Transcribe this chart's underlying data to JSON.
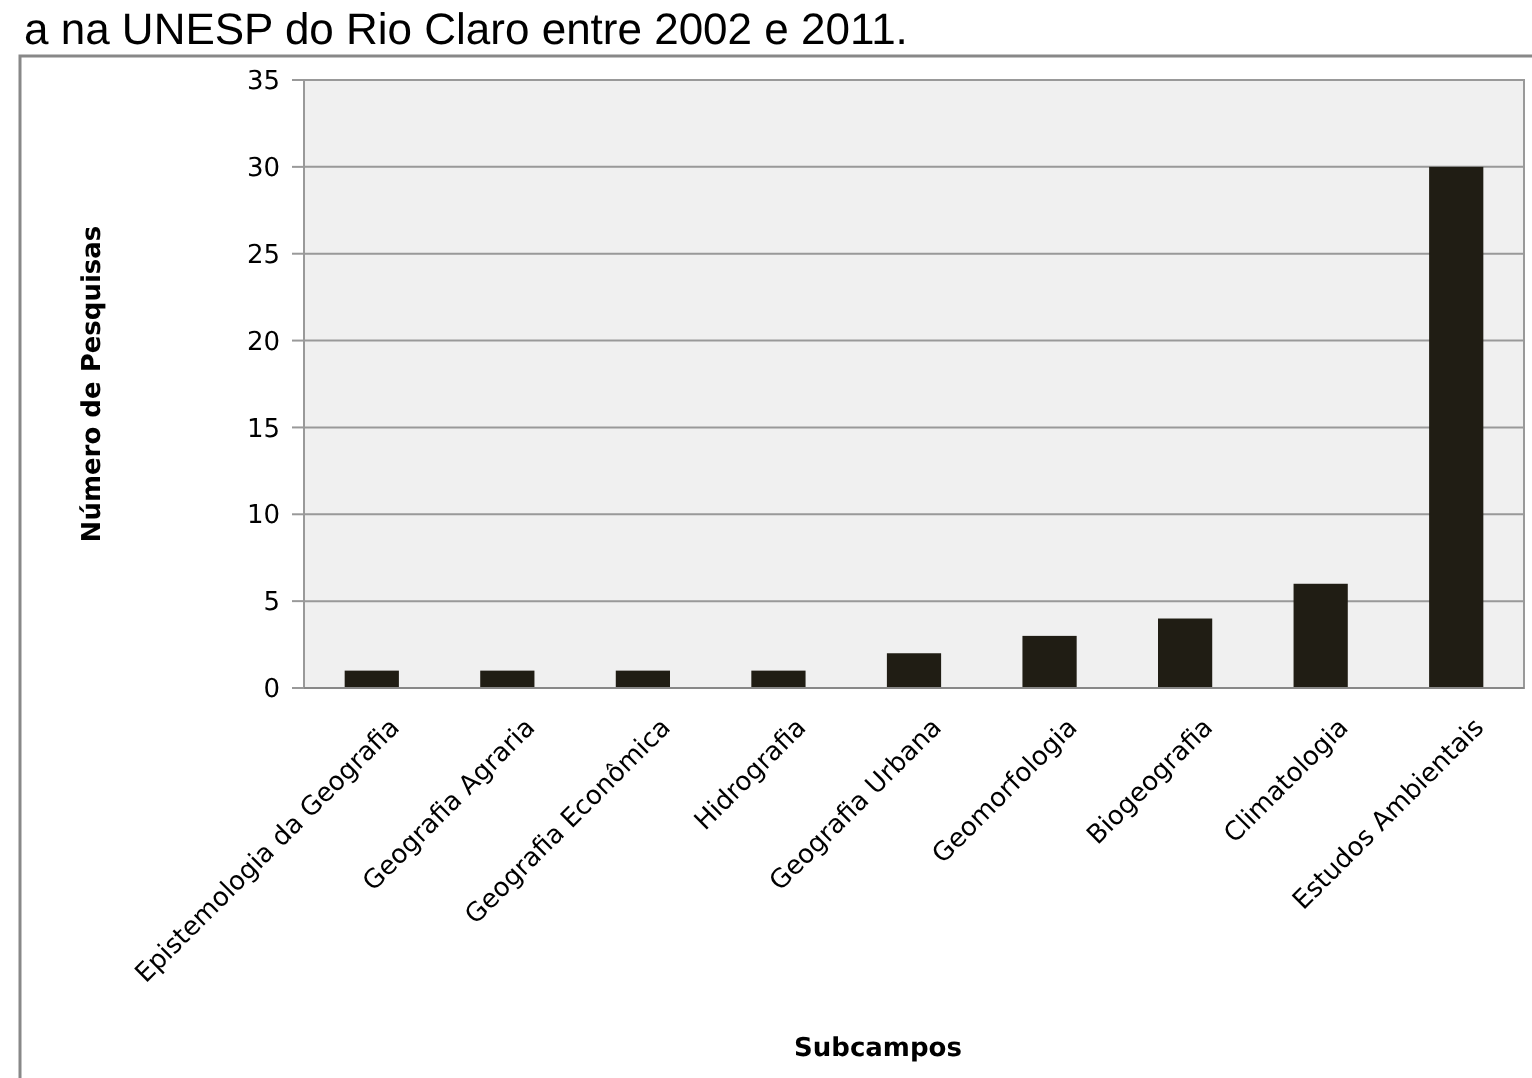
{
  "chart_data": {
    "type": "bar",
    "title": "a na UNESP do Rio Claro entre 2002 e 2011.",
    "xlabel": "Subcampos",
    "ylabel": "Número de Pesquisas",
    "categories": [
      "Epistemologia da Geografia",
      "Geografia Agraria",
      "Geografia Econômica",
      "Hidrografia",
      "Geografia Urbana",
      "Geomorfologia",
      "Biogeografia",
      "Climatologia",
      "Estudos Ambientais"
    ],
    "values": [
      1,
      1,
      1,
      1,
      2,
      3,
      4,
      6,
      30
    ],
    "color": "#201d14",
    "ylim": [
      0,
      35
    ],
    "yticks": [
      0,
      5,
      10,
      15,
      20,
      25,
      30,
      35
    ],
    "grid": "y"
  }
}
